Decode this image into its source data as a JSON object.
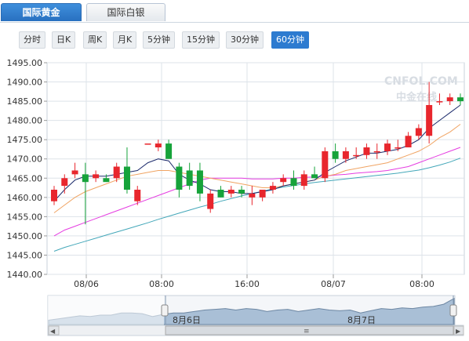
{
  "tabs": [
    {
      "label": "国际黄金",
      "active": true
    },
    {
      "label": "国际白银",
      "active": false
    }
  ],
  "periods": [
    {
      "label": "分时",
      "active": false
    },
    {
      "label": "日K",
      "active": false
    },
    {
      "label": "周K",
      "active": false
    },
    {
      "label": "月K",
      "active": false
    },
    {
      "label": "5分钟",
      "active": false
    },
    {
      "label": "15分钟",
      "active": false
    },
    {
      "label": "30分钟",
      "active": false
    },
    {
      "label": "60分钟",
      "active": true
    }
  ],
  "watermark": {
    "text": "CNFOL.COM",
    "subtext": "中金在线"
  },
  "colors": {
    "up": "#e8262d",
    "down": "#16a33a",
    "ma5": "#1b2a6b",
    "ma10": "#f0a463",
    "ma20": "#e53ce1",
    "ma30": "#43a7b9",
    "grid": "#dde3e9",
    "nav_fill": "#a9bfd6"
  },
  "chart_data": {
    "type": "candlestick",
    "y_ticks": [
      "1495.00",
      "1490.00",
      "1485.00",
      "1480.00",
      "1475.00",
      "1470.00",
      "1465.00",
      "1460.00",
      "1455.00",
      "1450.00",
      "1445.00",
      "1440.00"
    ],
    "ylim": [
      1440,
      1495
    ],
    "x_labels": [
      "08/06",
      "08:00",
      "16:00",
      "08/07",
      "08:00"
    ],
    "candles": [
      {
        "o": 1459,
        "h": 1463,
        "l": 1458,
        "c": 1462
      },
      {
        "o": 1463,
        "h": 1466,
        "l": 1461,
        "c": 1465
      },
      {
        "o": 1466,
        "h": 1469,
        "l": 1465,
        "c": 1467
      },
      {
        "o": 1466,
        "h": 1469,
        "l": 1453,
        "c": 1464
      },
      {
        "o": 1465,
        "h": 1467,
        "l": 1464,
        "c": 1466
      },
      {
        "o": 1465,
        "h": 1466,
        "l": 1464,
        "c": 1464
      },
      {
        "o": 1465,
        "h": 1469,
        "l": 1464,
        "c": 1468
      },
      {
        "o": 1468,
        "h": 1473,
        "l": 1461,
        "c": 1462
      },
      {
        "o": 1459,
        "h": 1463,
        "l": 1458,
        "c": 1462
      },
      {
        "o": 1474,
        "h": 1474,
        "l": 1474,
        "c": 1474
      },
      {
        "o": 1473,
        "h": 1475,
        "l": 1472,
        "c": 1474
      },
      {
        "o": 1474,
        "h": 1475,
        "l": 1470,
        "c": 1470
      },
      {
        "o": 1468,
        "h": 1469,
        "l": 1460,
        "c": 1462
      },
      {
        "o": 1467,
        "h": 1469,
        "l": 1462,
        "c": 1463
      },
      {
        "o": 1467,
        "h": 1469,
        "l": 1459,
        "c": 1461
      },
      {
        "o": 1457,
        "h": 1462,
        "l": 1456,
        "c": 1461
      },
      {
        "o": 1462,
        "h": 1463,
        "l": 1460,
        "c": 1460
      },
      {
        "o": 1461,
        "h": 1463,
        "l": 1460,
        "c": 1462
      },
      {
        "o": 1462,
        "h": 1463,
        "l": 1460,
        "c": 1461
      },
      {
        "o": 1460,
        "h": 1463,
        "l": 1458,
        "c": 1461
      },
      {
        "o": 1460,
        "h": 1462,
        "l": 1459,
        "c": 1462
      },
      {
        "o": 1462,
        "h": 1464,
        "l": 1461,
        "c": 1463
      },
      {
        "o": 1464,
        "h": 1466,
        "l": 1463,
        "c": 1465
      },
      {
        "o": 1465,
        "h": 1467,
        "l": 1462,
        "c": 1463
      },
      {
        "o": 1463,
        "h": 1467,
        "l": 1462,
        "c": 1466
      },
      {
        "o": 1466,
        "h": 1468,
        "l": 1465,
        "c": 1465
      },
      {
        "o": 1465,
        "h": 1473,
        "l": 1464,
        "c": 1472
      },
      {
        "o": 1472,
        "h": 1474,
        "l": 1469,
        "c": 1470
      },
      {
        "o": 1470,
        "h": 1473,
        "l": 1469,
        "c": 1472
      },
      {
        "o": 1471,
        "h": 1473,
        "l": 1470,
        "c": 1471
      },
      {
        "o": 1471,
        "h": 1474,
        "l": 1470,
        "c": 1473
      },
      {
        "o": 1472,
        "h": 1474,
        "l": 1470,
        "c": 1472
      },
      {
        "o": 1472,
        "h": 1475,
        "l": 1471,
        "c": 1474
      },
      {
        "o": 1473,
        "h": 1475,
        "l": 1472,
        "c": 1473
      },
      {
        "o": 1473,
        "h": 1477,
        "l": 1473,
        "c": 1476
      },
      {
        "o": 1476,
        "h": 1479,
        "l": 1475,
        "c": 1478
      },
      {
        "o": 1476,
        "h": 1490,
        "l": 1474,
        "c": 1484
      },
      {
        "o": 1485,
        "h": 1487,
        "l": 1484,
        "c": 1485
      },
      {
        "o": 1485,
        "h": 1487,
        "l": 1484,
        "c": 1486
      },
      {
        "o": 1486,
        "h": 1487,
        "l": 1484,
        "c": 1485
      }
    ],
    "ma": {
      "ma5": [
        1459,
        1462,
        1464.5,
        1465.5,
        1465.5,
        1465.5,
        1466,
        1466.5,
        1467,
        1469,
        1470,
        1469.5,
        1466,
        1464.5,
        1463.5,
        1462,
        1461.5,
        1461.5,
        1461,
        1461,
        1461.5,
        1462,
        1463,
        1463.5,
        1464,
        1464.5,
        1466.5,
        1468,
        1469.5,
        1470.5,
        1471.5,
        1471.5,
        1472,
        1472.5,
        1473.5,
        1475,
        1478,
        1480,
        1482,
        1484
      ],
      "ma10": [
        1456,
        1458,
        1460,
        1461.5,
        1462.5,
        1463.5,
        1464.5,
        1465.5,
        1466,
        1466.5,
        1467,
        1467,
        1466.5,
        1466,
        1465.5,
        1465,
        1464.5,
        1464,
        1463.5,
        1463,
        1462.5,
        1462.5,
        1463,
        1463.5,
        1464,
        1464.5,
        1465.5,
        1466,
        1467,
        1467.5,
        1468,
        1468.5,
        1469,
        1470,
        1471,
        1472,
        1473.5,
        1475.5,
        1477,
        1479
      ],
      "ma20": [
        1450,
        1451.5,
        1452.5,
        1453.5,
        1454.5,
        1455.5,
        1456.5,
        1457.5,
        1458.5,
        1459.5,
        1460.5,
        1461.5,
        1462.5,
        1463.5,
        1464.5,
        1465,
        1465,
        1465,
        1465,
        1464.8,
        1464.8,
        1464.8,
        1465,
        1465,
        1465.2,
        1465.3,
        1465.5,
        1465.8,
        1466,
        1466.3,
        1466.5,
        1466.7,
        1467,
        1467.5,
        1468,
        1469,
        1470,
        1471,
        1472,
        1473
      ],
      "ma30": [
        1446,
        1447,
        1447.8,
        1448.6,
        1449.4,
        1450.2,
        1451,
        1451.8,
        1452.6,
        1453.4,
        1454.3,
        1455.1,
        1455.9,
        1456.7,
        1457.5,
        1458.2,
        1459,
        1459.7,
        1460.4,
        1461,
        1461.6,
        1462.2,
        1462.7,
        1463.1,
        1463.5,
        1463.9,
        1464.2,
        1464.5,
        1464.8,
        1465.1,
        1465.4,
        1465.7,
        1466,
        1466.3,
        1466.7,
        1467.1,
        1467.7,
        1468.4,
        1469.2,
        1470.2
      ]
    }
  },
  "navigator": {
    "labels": [
      "8月6日",
      "8月7日"
    ],
    "scroll_left_arrow": "◀",
    "scroll_right_arrow": "▶",
    "scroll_thumb": "≡",
    "overview_series": [
      1456,
      1458,
      1460,
      1462,
      1461,
      1463,
      1463,
      1466,
      1466,
      1465,
      1461,
      1464,
      1466,
      1466,
      1468,
      1470,
      1471,
      1472,
      1470,
      1472,
      1471,
      1468,
      1470,
      1471,
      1468,
      1470,
      1472,
      1470,
      1469,
      1470,
      1466,
      1469,
      1472,
      1471,
      1473,
      1472,
      1474,
      1475,
      1478,
      1486
    ]
  }
}
